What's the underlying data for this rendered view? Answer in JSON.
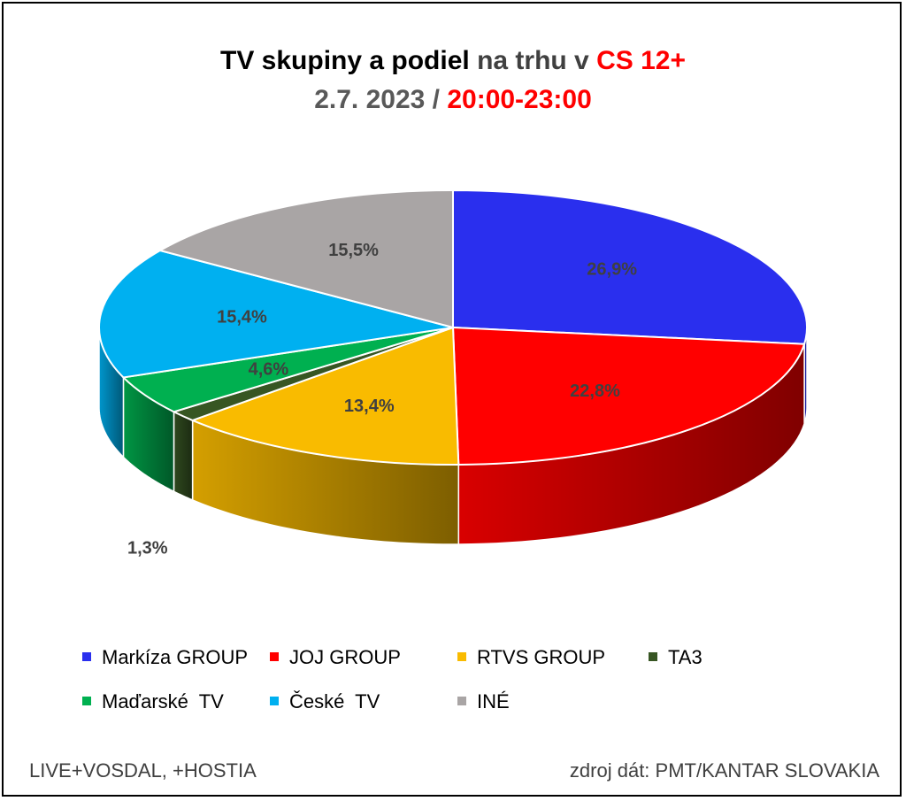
{
  "title": {
    "line1": [
      {
        "text": "TV skupiny a podiel ",
        "color": "#000000"
      },
      {
        "text": "na trhu v ",
        "color": "#404040"
      },
      {
        "text": "CS 12+",
        "color": "#ff0000"
      }
    ],
    "line2": [
      {
        "text": "2.7. 2023 / ",
        "color": "#595959"
      },
      {
        "text": "20:00-23:00",
        "color": "#ff0000"
      }
    ]
  },
  "chart_data": {
    "type": "pie",
    "style": "3d",
    "series": [
      {
        "name": "Markíza GROUP",
        "value": 26.9,
        "label": "26,9%",
        "color": "#2a2fee"
      },
      {
        "name": "JOJ GROUP",
        "value": 22.8,
        "label": "22,8%",
        "color": "#ff0000"
      },
      {
        "name": "RTVS GROUP",
        "value": 13.4,
        "label": "13,4%",
        "color": "#f9bb00"
      },
      {
        "name": "TA3",
        "value": 1.3,
        "label": "1,3%",
        "color": "#375623"
      },
      {
        "name": "Maďarské  TV",
        "value": 4.6,
        "label": "4,6%",
        "color": "#00b050"
      },
      {
        "name": "České  TV",
        "value": 15.4,
        "label": "15,4%",
        "color": "#00b0f0"
      },
      {
        "name": "INÉ",
        "value": 15.5,
        "label": "15,5%",
        "color": "#a9a5a5"
      }
    ],
    "legend_position": "bottom"
  },
  "footer": {
    "left": "LIVE+VOSDAL, +HOSTIA",
    "right": "zdroj dát: PMT/KANTAR SLOVAKIA"
  }
}
